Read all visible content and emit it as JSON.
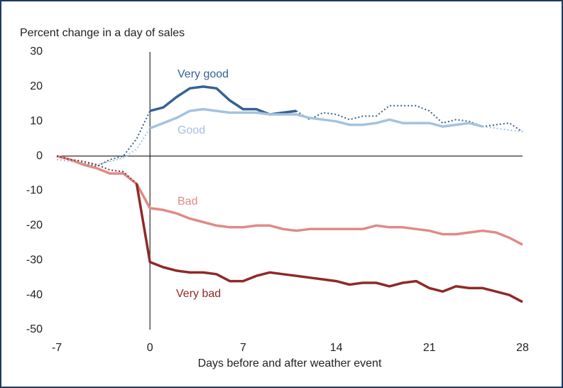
{
  "chart_data": {
    "type": "line",
    "y_axis_label": "Percent change in a day of sales",
    "x_axis_label": "Days before and after weather event",
    "x": [
      -7,
      -6,
      -5,
      -4,
      -3,
      -2,
      -1,
      0,
      1,
      2,
      3,
      4,
      5,
      6,
      7,
      8,
      9,
      10,
      11,
      12,
      13,
      14,
      15,
      16,
      17,
      18,
      19,
      20,
      21,
      22,
      23,
      24,
      25,
      26,
      27,
      28
    ],
    "xlim": [
      -7,
      28
    ],
    "xticks": [
      -7,
      0,
      7,
      14,
      21,
      28
    ],
    "ylim": [
      -50,
      30
    ],
    "yticks": [
      -50,
      -40,
      -30,
      -20,
      -10,
      0,
      10,
      20,
      30
    ],
    "series": [
      {
        "name": "Very good",
        "color": "#36628f",
        "values": [
          null,
          null,
          null,
          null,
          null,
          null,
          null,
          13,
          14,
          17,
          19.5,
          20,
          19.5,
          16,
          13.5,
          13.5,
          12,
          12.5,
          13,
          null,
          null,
          null,
          null,
          null,
          null,
          null,
          null,
          null,
          null,
          null,
          null,
          null,
          null,
          null,
          null,
          null
        ],
        "dotted": [
          0,
          -1,
          -2,
          -3,
          -1,
          0,
          5,
          13,
          null,
          null,
          null,
          null,
          null,
          null,
          null,
          13.5,
          12,
          null,
          13,
          10.5,
          12.5,
          12,
          10.5,
          11.5,
          11.5,
          14.5,
          14.5,
          14.5,
          13,
          9.5,
          10.5,
          10,
          8.5,
          9,
          9.5,
          7
        ]
      },
      {
        "name": "Good",
        "color": "#a4c2e0",
        "values": [
          null,
          null,
          null,
          null,
          null,
          null,
          null,
          8,
          9.5,
          11,
          13,
          13.5,
          13,
          12.5,
          12.5,
          12.5,
          12,
          12,
          12,
          11,
          10.5,
          10,
          9,
          9,
          9.5,
          10.5,
          9.5,
          9.5,
          9.5,
          8.5,
          9,
          9.5,
          8.5,
          null,
          null,
          null
        ],
        "dotted": [
          -1,
          -1.5,
          -2,
          -2.5,
          -1.5,
          -0.5,
          2,
          8,
          null,
          null,
          null,
          null,
          null,
          null,
          null,
          null,
          null,
          null,
          null,
          null,
          null,
          null,
          null,
          null,
          null,
          null,
          null,
          null,
          null,
          null,
          null,
          null,
          8.5,
          8,
          7.5,
          7
        ]
      },
      {
        "name": "Bad",
        "color": "#e08a86",
        "values": [
          0,
          -1,
          -2.5,
          -3.5,
          -5,
          -5,
          -8,
          -15,
          -15.5,
          -16.5,
          -18,
          -19,
          -20,
          -20.5,
          -20.5,
          -20,
          -20,
          -21,
          -21.5,
          -21,
          -21,
          -21,
          -21,
          -21,
          -20,
          -20.5,
          -20.5,
          -21,
          -21.5,
          -22.5,
          -22.5,
          -22,
          -21.5,
          -22,
          -23.5,
          -25.5
        ]
      },
      {
        "name": "Very bad",
        "color": "#8e2a28",
        "values": [
          null,
          null,
          null,
          null,
          null,
          null,
          -8,
          -30.5,
          -32,
          -33,
          -33.5,
          -33.5,
          -34,
          -36,
          -36,
          -34.5,
          -33.5,
          -34,
          -34.5,
          -35,
          -35.5,
          -36,
          -37,
          -36.5,
          -36.5,
          -37.5,
          -36.5,
          -36,
          -38,
          -39,
          -37.5,
          -38,
          -38,
          -39,
          -40,
          -42
        ],
        "dotted": [
          0,
          -1,
          -1.5,
          -2.5,
          -4,
          -4.5,
          -8,
          null,
          null,
          null,
          null,
          null,
          null,
          null,
          null,
          null,
          null,
          null,
          null,
          null,
          null,
          null,
          null,
          null,
          null,
          null,
          null,
          null,
          null,
          null,
          null,
          null,
          null,
          null,
          null,
          null
        ]
      }
    ]
  }
}
